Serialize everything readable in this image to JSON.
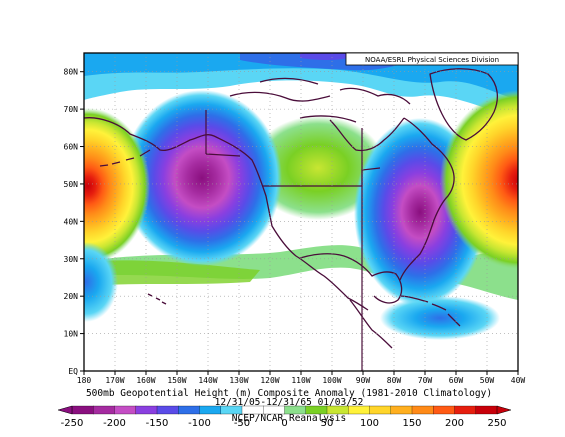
{
  "credit": "NOAA/ESRL Physical Sciences Division",
  "caption_line1": "500mb Geopotential Height (m) Composite Anomaly (1981-2010 Climatology)",
  "caption_line2": "12/31/05-12/31/65 01/03/52",
  "caption_line3": "NCEP/NCAR Reanalysis",
  "lat_labels": [
    "EQ",
    "10N",
    "20N",
    "30N",
    "40N",
    "50N",
    "60N",
    "70N",
    "80N"
  ],
  "lon_labels": [
    "180",
    "170W",
    "160W",
    "150W",
    "140W",
    "130W",
    "120W",
    "110W",
    "100W",
    "90W",
    "80W",
    "70W",
    "60W",
    "50W",
    "40W"
  ],
  "colorbar": {
    "ticks": [
      "-250",
      "-200",
      "-150",
      "-100",
      "-50",
      "0",
      "50",
      "100",
      "150",
      "200",
      "250"
    ],
    "colors": [
      "#8a0f7f",
      "#a52ba0",
      "#c44dc4",
      "#8a3fe0",
      "#5a4be8",
      "#2e6fe8",
      "#1aa8f0",
      "#5ad6f5",
      "#ffffff",
      "#ffffff",
      "#8ce08c",
      "#7ad024",
      "#c8e632",
      "#fff23a",
      "#ffd52a",
      "#ffaf1f",
      "#ff8a18",
      "#ff5a14",
      "#e61e0e",
      "#c8000a"
    ]
  },
  "chart_data": {
    "type": "heatmap",
    "title": "500mb Geopotential Height (m) Composite Anomaly (1981-2010 Climatology)",
    "xlabel": "",
    "ylabel": "",
    "x_range_lon": [
      -180,
      -40
    ],
    "y_range_lat": [
      0,
      85
    ],
    "value_range": [
      -250,
      250
    ],
    "contour_interval": 25,
    "anomaly_centers": [
      {
        "lon": -145,
        "lat": 50,
        "value": -250
      },
      {
        "lon": -72,
        "lat": 40,
        "value": -250
      },
      {
        "lon": -180,
        "lat": 50,
        "value": 225
      },
      {
        "lon": -42,
        "lat": 50,
        "value": 250
      },
      {
        "lon": -107,
        "lat": 52,
        "value": 100
      },
      {
        "lon": -115,
        "lat": 78,
        "value": -125
      },
      {
        "lon": -180,
        "lat": 24,
        "value": -100
      }
    ]
  }
}
